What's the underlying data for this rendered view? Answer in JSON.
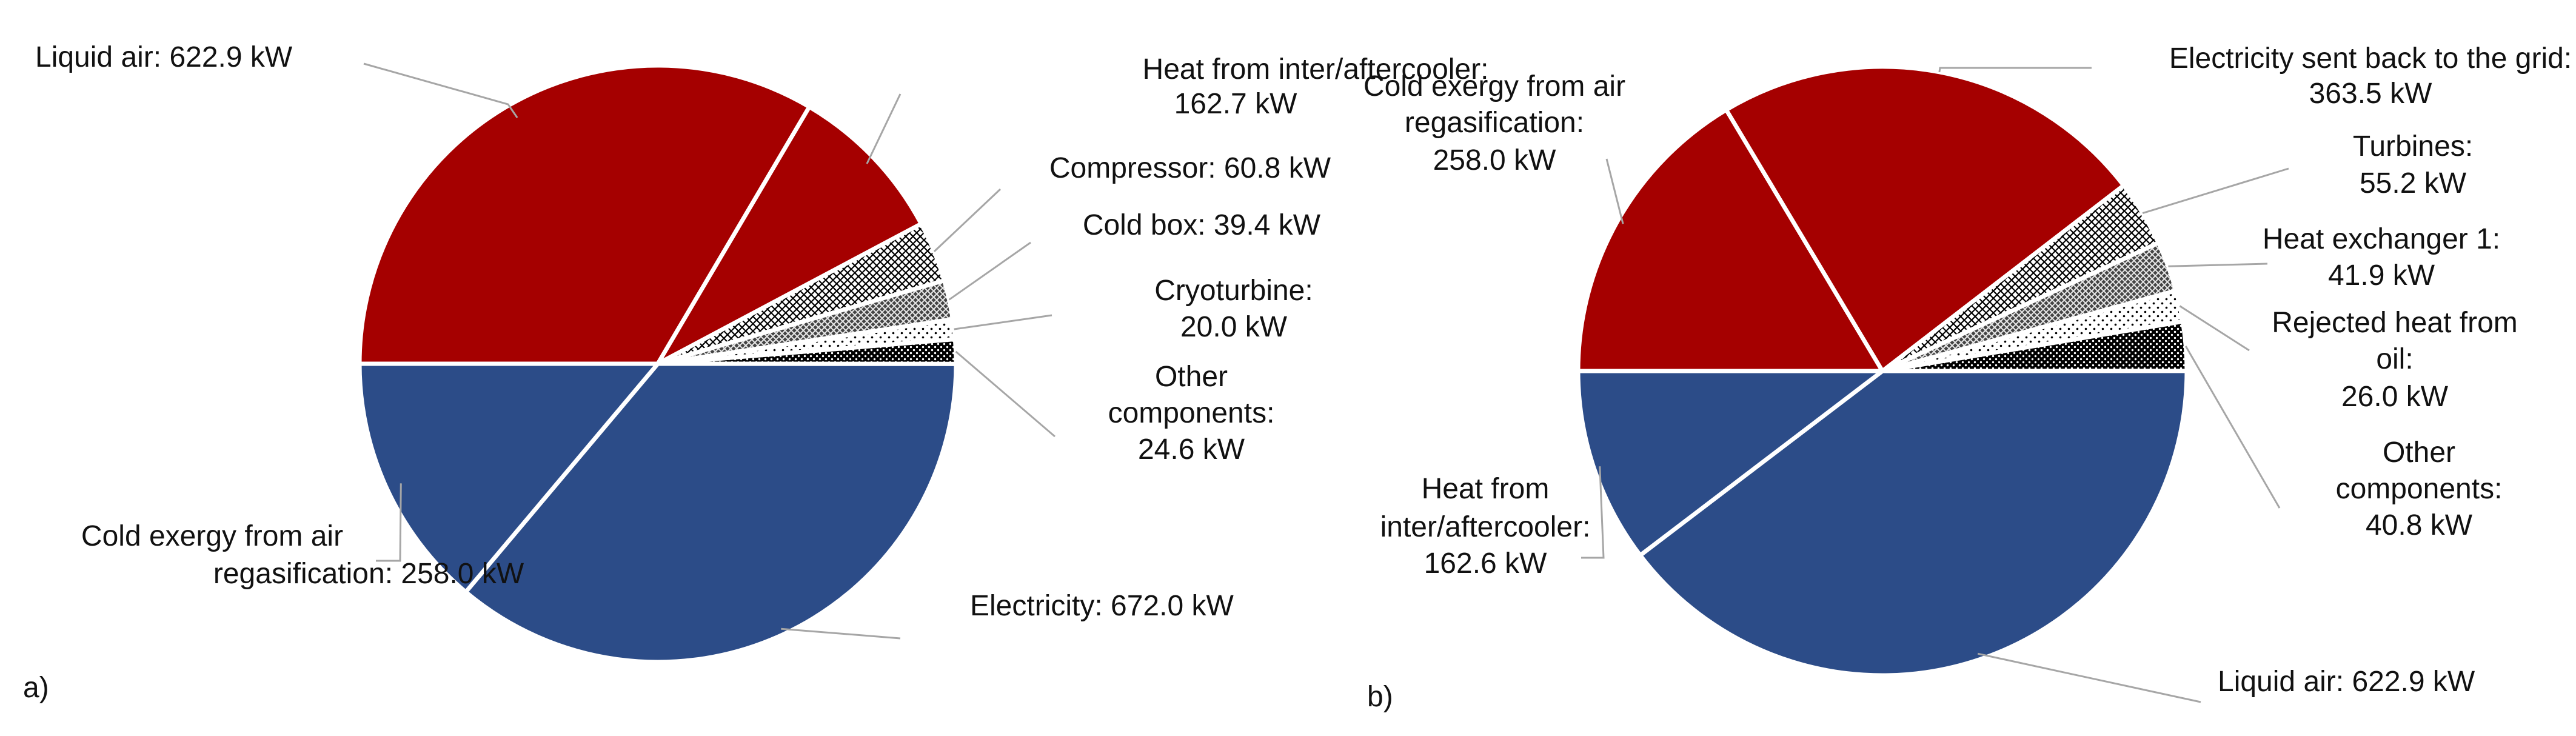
{
  "chart_data": [
    {
      "type": "pie",
      "panel_label": "a)",
      "colors": {
        "inflow": "#a50000",
        "outflow": "#2c4c88",
        "edge": "#ffffff",
        "leader": "#a6a6a6"
      },
      "slices": [
        {
          "label_lines": [
            "Liquid air: 622.9 kW"
          ],
          "value": 622.9,
          "fill": "red"
        },
        {
          "label_lines": [
            "Heat from inter/aftercooler:",
            "162.7 kW"
          ],
          "value": 162.7,
          "fill": "red"
        },
        {
          "label_lines": [
            "Compressor: 60.8 kW"
          ],
          "value": 60.8,
          "fill": "crosshatch-light"
        },
        {
          "label_lines": [
            "Cold box: 39.4 kW"
          ],
          "value": 39.4,
          "fill": "crosshatch-dark"
        },
        {
          "label_lines": [
            "Cryoturbine:",
            "20.0 kW"
          ],
          "value": 20.0,
          "fill": "dots-sparse"
        },
        {
          "label_lines": [
            "Other",
            "components:",
            "24.6 kW"
          ],
          "value": 24.6,
          "fill": "dots-dense"
        },
        {
          "label_lines": [
            "Electricity: 672.0 kW"
          ],
          "value": 672.0,
          "fill": "blue"
        },
        {
          "label_lines": [
            "Cold exergy from air",
            "regasification: 258.0 kW"
          ],
          "value": 258.0,
          "fill": "blue"
        }
      ]
    },
    {
      "type": "pie",
      "panel_label": "b)",
      "colors": {
        "inflow": "#a50000",
        "outflow": "#2c4c88",
        "edge": "#ffffff",
        "leader": "#a6a6a6"
      },
      "slices": [
        {
          "label_lines": [
            "Cold exergy from air",
            "regasification:",
            "258.0 kW"
          ],
          "value": 258.0,
          "fill": "red"
        },
        {
          "label_lines": [
            "Electricity sent back to the grid:",
            "363.5 kW"
          ],
          "value": 363.5,
          "fill": "red"
        },
        {
          "label_lines": [
            "Turbines:",
            "55.2 kW"
          ],
          "value": 55.2,
          "fill": "crosshatch-light"
        },
        {
          "label_lines": [
            "Heat exchanger 1:",
            "41.9 kW"
          ],
          "value": 41.9,
          "fill": "crosshatch-dark"
        },
        {
          "label_lines": [
            "Rejected heat from",
            "oil:",
            "26.0 kW"
          ],
          "value": 26.0,
          "fill": "dots-sparse"
        },
        {
          "label_lines": [
            "Other",
            "components:",
            "40.8 kW"
          ],
          "value": 40.8,
          "fill": "dots-dense"
        },
        {
          "label_lines": [
            "Liquid air: 622.9 kW"
          ],
          "value": 622.9,
          "fill": "blue"
        },
        {
          "label_lines": [
            "Heat from",
            "inter/aftercooler:",
            "162.6 kW"
          ],
          "value": 162.6,
          "fill": "blue"
        }
      ]
    }
  ]
}
